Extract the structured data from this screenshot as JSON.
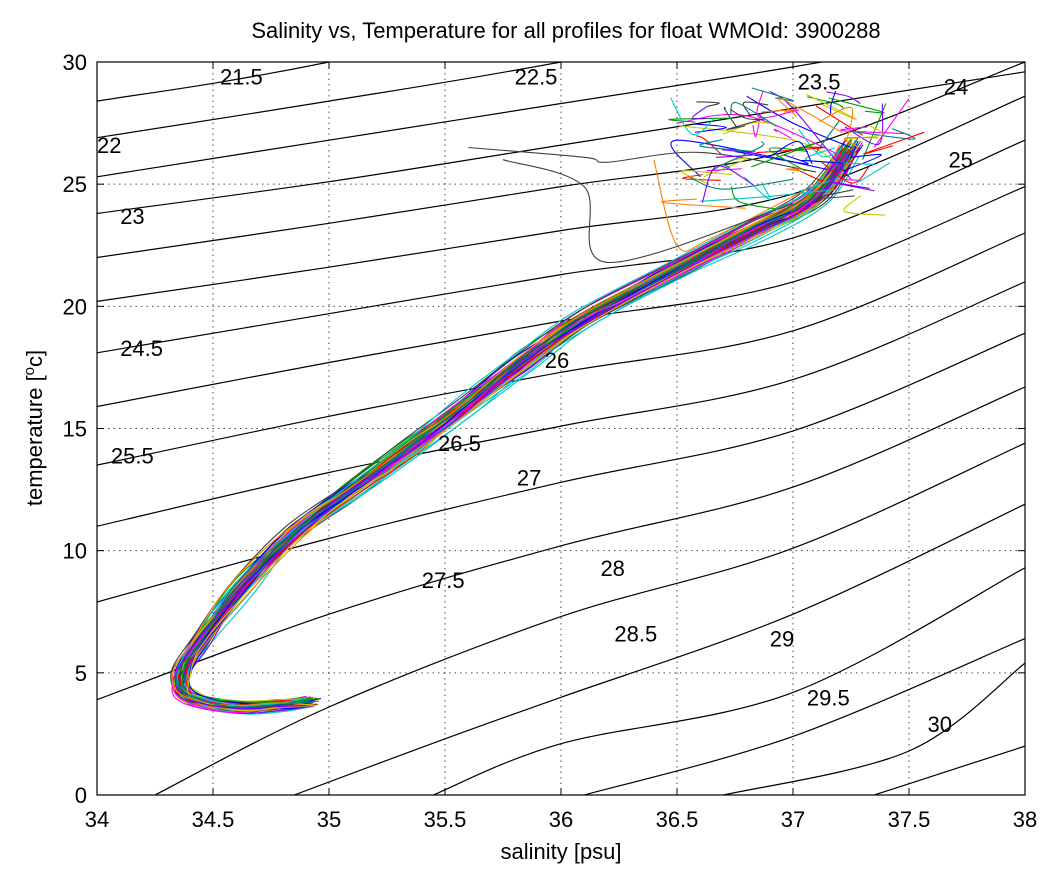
{
  "chart_data": {
    "type": "line",
    "title": "Salinity vs, Temperature for all profiles for float WMOId: 3900288",
    "xlabel": "salinity [psu]",
    "ylabel_main": "temperature [",
    "ylabel_sup": "o",
    "ylabel_tail": "c]",
    "xlim": [
      34,
      38
    ],
    "ylim": [
      0,
      30
    ],
    "xticks": [
      "34",
      "34.5",
      "35",
      "35.5",
      "36",
      "36.5",
      "37",
      "37.5",
      "38"
    ],
    "yticks": [
      "0",
      "5",
      "10",
      "15",
      "20",
      "25",
      "30"
    ],
    "grid": true,
    "isopycnal_labels": [
      {
        "text": "21.5",
        "x": 34.53,
        "y": 29.4
      },
      {
        "text": "22",
        "x": 34.0,
        "y": 26.6
      },
      {
        "text": "22.5",
        "x": 35.8,
        "y": 29.4
      },
      {
        "text": "23",
        "x": 34.1,
        "y": 23.7
      },
      {
        "text": "23.5",
        "x": 37.02,
        "y": 29.2
      },
      {
        "text": "24",
        "x": 37.65,
        "y": 29.0
      },
      {
        "text": "24.5",
        "x": 34.1,
        "y": 18.3
      },
      {
        "text": "25",
        "x": 37.67,
        "y": 26.0
      },
      {
        "text": "25.5",
        "x": 34.06,
        "y": 13.9
      },
      {
        "text": "26",
        "x": 35.93,
        "y": 17.8
      },
      {
        "text": "26.5",
        "x": 35.47,
        "y": 14.4
      },
      {
        "text": "27",
        "x": 35.81,
        "y": 13.0
      },
      {
        "text": "27.5",
        "x": 35.4,
        "y": 8.8
      },
      {
        "text": "28",
        "x": 36.17,
        "y": 9.3
      },
      {
        "text": "28.5",
        "x": 36.23,
        "y": 6.6
      },
      {
        "text": "29",
        "x": 36.9,
        "y": 6.4
      },
      {
        "text": "29.5",
        "x": 37.06,
        "y": 4.0
      },
      {
        "text": "30",
        "x": 37.58,
        "y": 2.9
      }
    ],
    "isopycnals": [
      {
        "sigma": 21.5,
        "points": [
          [
            34.0,
            30.5
          ],
          [
            36.0,
            33.3
          ]
        ]
      },
      {
        "sigma": 22,
        "points": [
          [
            34.0,
            28.4
          ],
          [
            35.0,
            30.0
          ],
          [
            37.0,
            34.2
          ]
        ]
      },
      {
        "sigma": 22.5,
        "points": [
          [
            34.0,
            26.9
          ],
          [
            35.0,
            28.4
          ],
          [
            36.0,
            30.0
          ],
          [
            38.0,
            33.6
          ]
        ]
      },
      {
        "sigma": 23,
        "points": [
          [
            34.0,
            25.3
          ],
          [
            35.0,
            26.8
          ],
          [
            36.0,
            28.3
          ],
          [
            37.0,
            29.8
          ],
          [
            38.0,
            31.5
          ]
        ]
      },
      {
        "sigma": 23.5,
        "points": [
          [
            34.0,
            23.8
          ],
          [
            35.0,
            25.1
          ],
          [
            36.0,
            26.6
          ],
          [
            37.0,
            28.1
          ],
          [
            38.0,
            29.6
          ]
        ]
      },
      {
        "sigma": 24,
        "points": [
          [
            34.0,
            22.0
          ],
          [
            35.0,
            23.4
          ],
          [
            36.0,
            24.9
          ],
          [
            37.0,
            26.4
          ],
          [
            38.0,
            30.0
          ]
        ]
      },
      {
        "sigma": 24.5,
        "points": [
          [
            34.0,
            20.2
          ],
          [
            35.0,
            21.6
          ],
          [
            36.0,
            23.1
          ],
          [
            37.0,
            24.6
          ],
          [
            38.0,
            28.6
          ]
        ]
      },
      {
        "sigma": 25,
        "points": [
          [
            34.0,
            18.1
          ],
          [
            35.0,
            19.7
          ],
          [
            36.0,
            21.3
          ],
          [
            37.0,
            22.8
          ],
          [
            38.0,
            26.8
          ]
        ]
      },
      {
        "sigma": 25.5,
        "points": [
          [
            34.0,
            15.9
          ],
          [
            35.0,
            17.7
          ],
          [
            36.0,
            19.4
          ],
          [
            37.0,
            21.0
          ],
          [
            38.0,
            24.9
          ]
        ]
      },
      {
        "sigma": 26,
        "points": [
          [
            34.0,
            13.5
          ],
          [
            35.0,
            15.5
          ],
          [
            36.0,
            17.3
          ],
          [
            37.0,
            19.0
          ],
          [
            38.0,
            23.0
          ]
        ]
      },
      {
        "sigma": 26.5,
        "points": [
          [
            34.0,
            11.0
          ],
          [
            35.0,
            13.2
          ],
          [
            36.0,
            15.1
          ],
          [
            37.0,
            17.0
          ],
          [
            38.0,
            21.0
          ]
        ]
      },
      {
        "sigma": 27,
        "points": [
          [
            34.0,
            7.9
          ],
          [
            35.0,
            10.5
          ],
          [
            36.0,
            12.8
          ],
          [
            37.0,
            14.9
          ],
          [
            38.0,
            18.9
          ]
        ]
      },
      {
        "sigma": 27.5,
        "points": [
          [
            34.0,
            3.9
          ],
          [
            35.0,
            7.4
          ],
          [
            36.0,
            10.2
          ],
          [
            37.0,
            12.6
          ],
          [
            38.0,
            16.7
          ]
        ]
      },
      {
        "sigma": 28,
        "points": [
          [
            34.25,
            0.0
          ],
          [
            35.0,
            3.6
          ],
          [
            36.0,
            7.3
          ],
          [
            37.0,
            10.1
          ],
          [
            38.0,
            14.4
          ]
        ]
      },
      {
        "sigma": 28.5,
        "points": [
          [
            34.85,
            0.0
          ],
          [
            35.5,
            2.3
          ],
          [
            36.0,
            4.0
          ],
          [
            37.0,
            7.4
          ],
          [
            38.0,
            11.9
          ]
        ]
      },
      {
        "sigma": 29,
        "points": [
          [
            35.45,
            0.0
          ],
          [
            36.0,
            2.1
          ],
          [
            37.0,
            4.2
          ],
          [
            38.0,
            9.3
          ]
        ]
      },
      {
        "sigma": 29.5,
        "points": [
          [
            36.1,
            0.0
          ],
          [
            37.0,
            2.4
          ],
          [
            38.0,
            6.4
          ]
        ]
      },
      {
        "sigma": 30,
        "points": [
          [
            36.7,
            0.0
          ],
          [
            37.5,
            1.8
          ],
          [
            38.0,
            5.4
          ]
        ]
      },
      {
        "sigma": 30.5,
        "points": [
          [
            37.35,
            0.0
          ],
          [
            38.0,
            2.0
          ]
        ]
      }
    ],
    "profile_colors": [
      "#0000ff",
      "#ff0000",
      "#00a000",
      "#ff00ff",
      "#00c8c8",
      "#c8c800",
      "#404040",
      "#8000ff",
      "#ff8000",
      "#008080"
    ],
    "mean_profile": [
      [
        37.25,
        26.5
      ],
      [
        37.1,
        24.5
      ],
      [
        36.85,
        23.2
      ],
      [
        36.5,
        21.5
      ],
      [
        36.1,
        19.5
      ],
      [
        35.85,
        17.8
      ],
      [
        35.6,
        16.0
      ],
      [
        35.35,
        14.2
      ],
      [
        35.1,
        12.5
      ],
      [
        34.85,
        10.7
      ],
      [
        34.62,
        8.5
      ],
      [
        34.45,
        6.3
      ],
      [
        34.36,
        4.9
      ],
      [
        34.4,
        4.0
      ],
      [
        34.6,
        3.6
      ],
      [
        34.8,
        3.7
      ],
      [
        34.92,
        3.8
      ]
    ],
    "surface_tails": [
      [
        [
          37.25,
          26.5
        ],
        [
          37.0,
          27.5
        ],
        [
          36.8,
          28.6
        ]
      ],
      [
        [
          37.2,
          26.2
        ],
        [
          36.8,
          27.8
        ],
        [
          36.5,
          27.5
        ]
      ],
      [
        [
          37.1,
          25.5
        ],
        [
          36.6,
          26.3
        ],
        [
          36.2,
          25.9
        ],
        [
          36.1,
          26.1
        ],
        [
          35.6,
          26.5
        ]
      ],
      [
        [
          37.0,
          25.2
        ],
        [
          36.7,
          24.8
        ],
        [
          36.55,
          25.3
        ]
      ],
      [
        [
          37.3,
          26.0
        ],
        [
          37.4,
          28.3
        ]
      ],
      [
        [
          37.2,
          25.8
        ],
        [
          37.0,
          26.8
        ],
        [
          36.5,
          27.4
        ]
      ],
      [
        [
          37.1,
          25.0
        ],
        [
          36.65,
          22.8
        ],
        [
          36.5,
          22.5
        ],
        [
          36.4,
          26.0
        ]
      ],
      [
        [
          37.3,
          27.0
        ],
        [
          37.1,
          28.2
        ]
      ],
      [
        [
          37.2,
          24.8
        ],
        [
          36.9,
          24.5
        ],
        [
          36.6,
          24.3
        ]
      ],
      [
        [
          37.25,
          25.2
        ],
        [
          37.0,
          28.1
        ],
        [
          36.9,
          28.8
        ]
      ],
      [
        [
          37.15,
          25.6
        ],
        [
          36.5,
          26.8
        ],
        [
          36.6,
          25.3
        ]
      ],
      [
        [
          37.35,
          26.5
        ],
        [
          37.5,
          28.5
        ]
      ],
      [
        [
          37.0,
          24.2
        ],
        [
          36.2,
          21.8
        ],
        [
          36.1,
          24.9
        ],
        [
          35.75,
          26.0
        ]
      ],
      [
        [
          37.1,
          26.3
        ],
        [
          37.2,
          27.6
        ]
      ]
    ]
  }
}
